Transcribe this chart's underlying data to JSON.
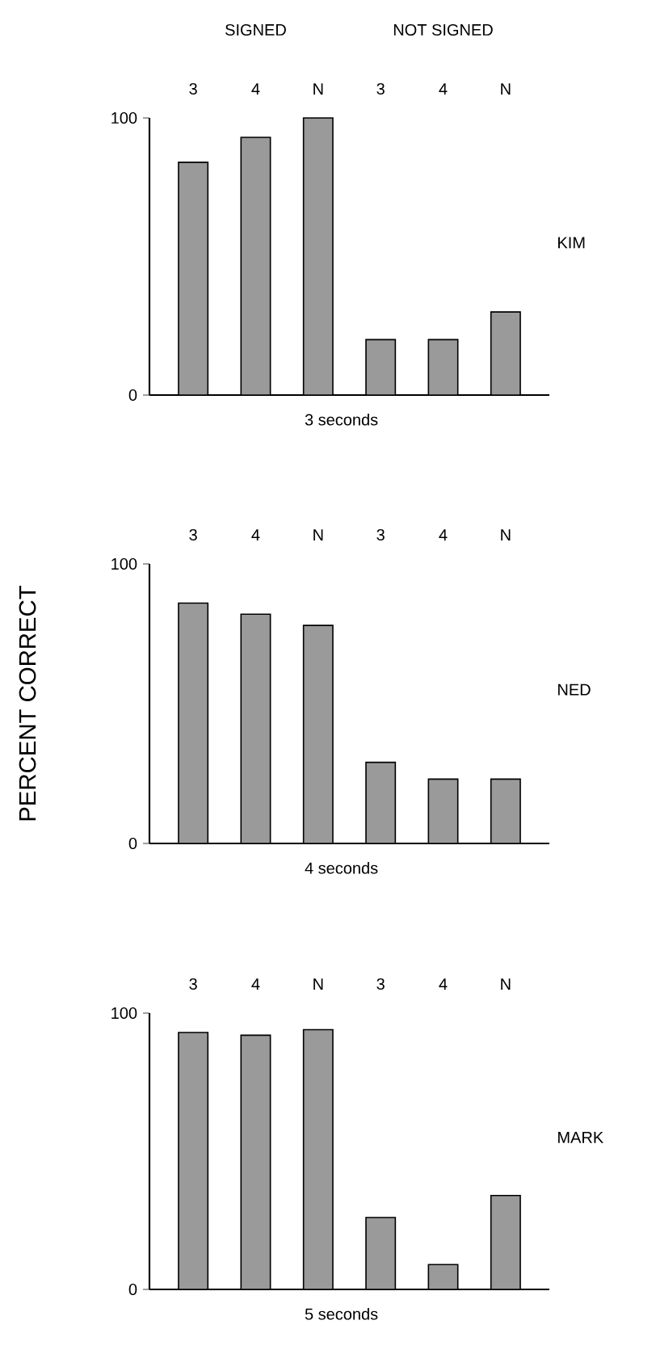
{
  "chart_data": [
    {
      "type": "bar",
      "xlabel": "3 seconds",
      "annotations": [
        "SIGNED",
        "NOT SIGNED",
        "KIM"
      ],
      "categories": [
        "3",
        "4",
        "N",
        "3",
        "4",
        "N"
      ],
      "values": [
        84,
        93,
        100,
        20,
        20,
        30
      ],
      "color": "#9a9a9a",
      "ylim": [
        0,
        100
      ],
      "yticks": [
        0,
        100
      ]
    },
    {
      "type": "bar",
      "annotations": [
        "NED"
      ],
      "xlabel": "4 seconds",
      "ylabel": "PERCENT CORRECT",
      "categories": [
        "3",
        "4",
        "N",
        "3",
        "4",
        "N"
      ],
      "values": [
        86,
        82,
        78,
        29,
        23,
        23
      ],
      "color": "#9a9a9a",
      "ylim": [
        0,
        100
      ],
      "yticks": [
        0,
        100
      ]
    },
    {
      "type": "bar",
      "annotations": [
        "MARK"
      ],
      "xlabel": "5 seconds",
      "categories": [
        "3",
        "4",
        "N",
        "3",
        "4",
        "N"
      ],
      "values": [
        93,
        92,
        94,
        26,
        9,
        34
      ],
      "color": "#9a9a9a",
      "ylim": [
        0,
        100
      ],
      "yticks": [
        0,
        100
      ]
    }
  ]
}
